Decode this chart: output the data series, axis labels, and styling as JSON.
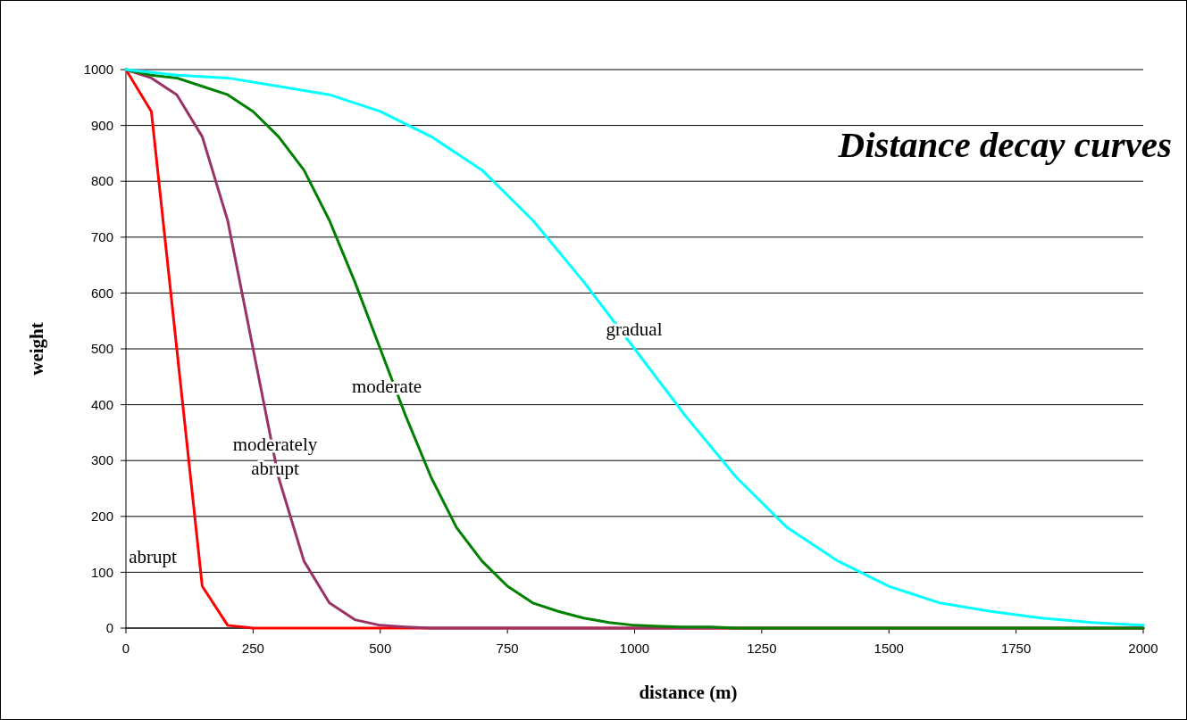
{
  "chart_data": {
    "type": "line",
    "title": "Distance decay curves",
    "xlabel": "distance (m)",
    "ylabel": "weight",
    "xlim": [
      0,
      2000
    ],
    "xticks": [
      0,
      250,
      500,
      750,
      1000,
      1250,
      1500,
      1750,
      2000
    ],
    "ylim": [
      0,
      1000
    ],
    "yticks": [
      0,
      100,
      200,
      300,
      400,
      500,
      600,
      700,
      800,
      900,
      1000
    ],
    "grid": "y",
    "marker": "none",
    "line_style": "solid",
    "series": [
      {
        "name": "abrupt",
        "color": "#ff0000",
        "x": [
          0,
          50,
          100,
          150,
          200,
          250,
          2000
        ],
        "values": [
          1000,
          925,
          500,
          75,
          5,
          0,
          0
        ]
      },
      {
        "name": "moderately abrupt",
        "color": "#993366",
        "x": [
          0,
          50,
          100,
          150,
          200,
          250,
          300,
          350,
          400,
          450,
          500,
          550,
          600,
          2000
        ],
        "values": [
          1000,
          985,
          955,
          880,
          730,
          500,
          270,
          120,
          45,
          15,
          5,
          2,
          0,
          0
        ]
      },
      {
        "name": "moderate",
        "color": "#008000",
        "x": [
          0,
          50,
          100,
          150,
          200,
          250,
          300,
          350,
          400,
          450,
          500,
          550,
          600,
          650,
          700,
          750,
          800,
          850,
          900,
          950,
          1000,
          1050,
          1100,
          1150,
          1200,
          2000
        ],
        "values": [
          1000,
          990,
          985,
          970,
          955,
          925,
          880,
          820,
          730,
          620,
          500,
          380,
          270,
          180,
          120,
          75,
          45,
          30,
          18,
          10,
          5,
          3,
          2,
          2,
          0,
          0
        ]
      },
      {
        "name": "gradual",
        "color": "#00ffff",
        "x": [
          0,
          100,
          200,
          300,
          400,
          500,
          600,
          700,
          800,
          900,
          1000,
          1100,
          1200,
          1300,
          1400,
          1500,
          1600,
          1700,
          1800,
          1900,
          2000
        ],
        "values": [
          1000,
          990,
          985,
          970,
          955,
          925,
          880,
          820,
          730,
          620,
          500,
          380,
          270,
          180,
          120,
          75,
          45,
          30,
          18,
          10,
          5
        ]
      }
    ]
  }
}
